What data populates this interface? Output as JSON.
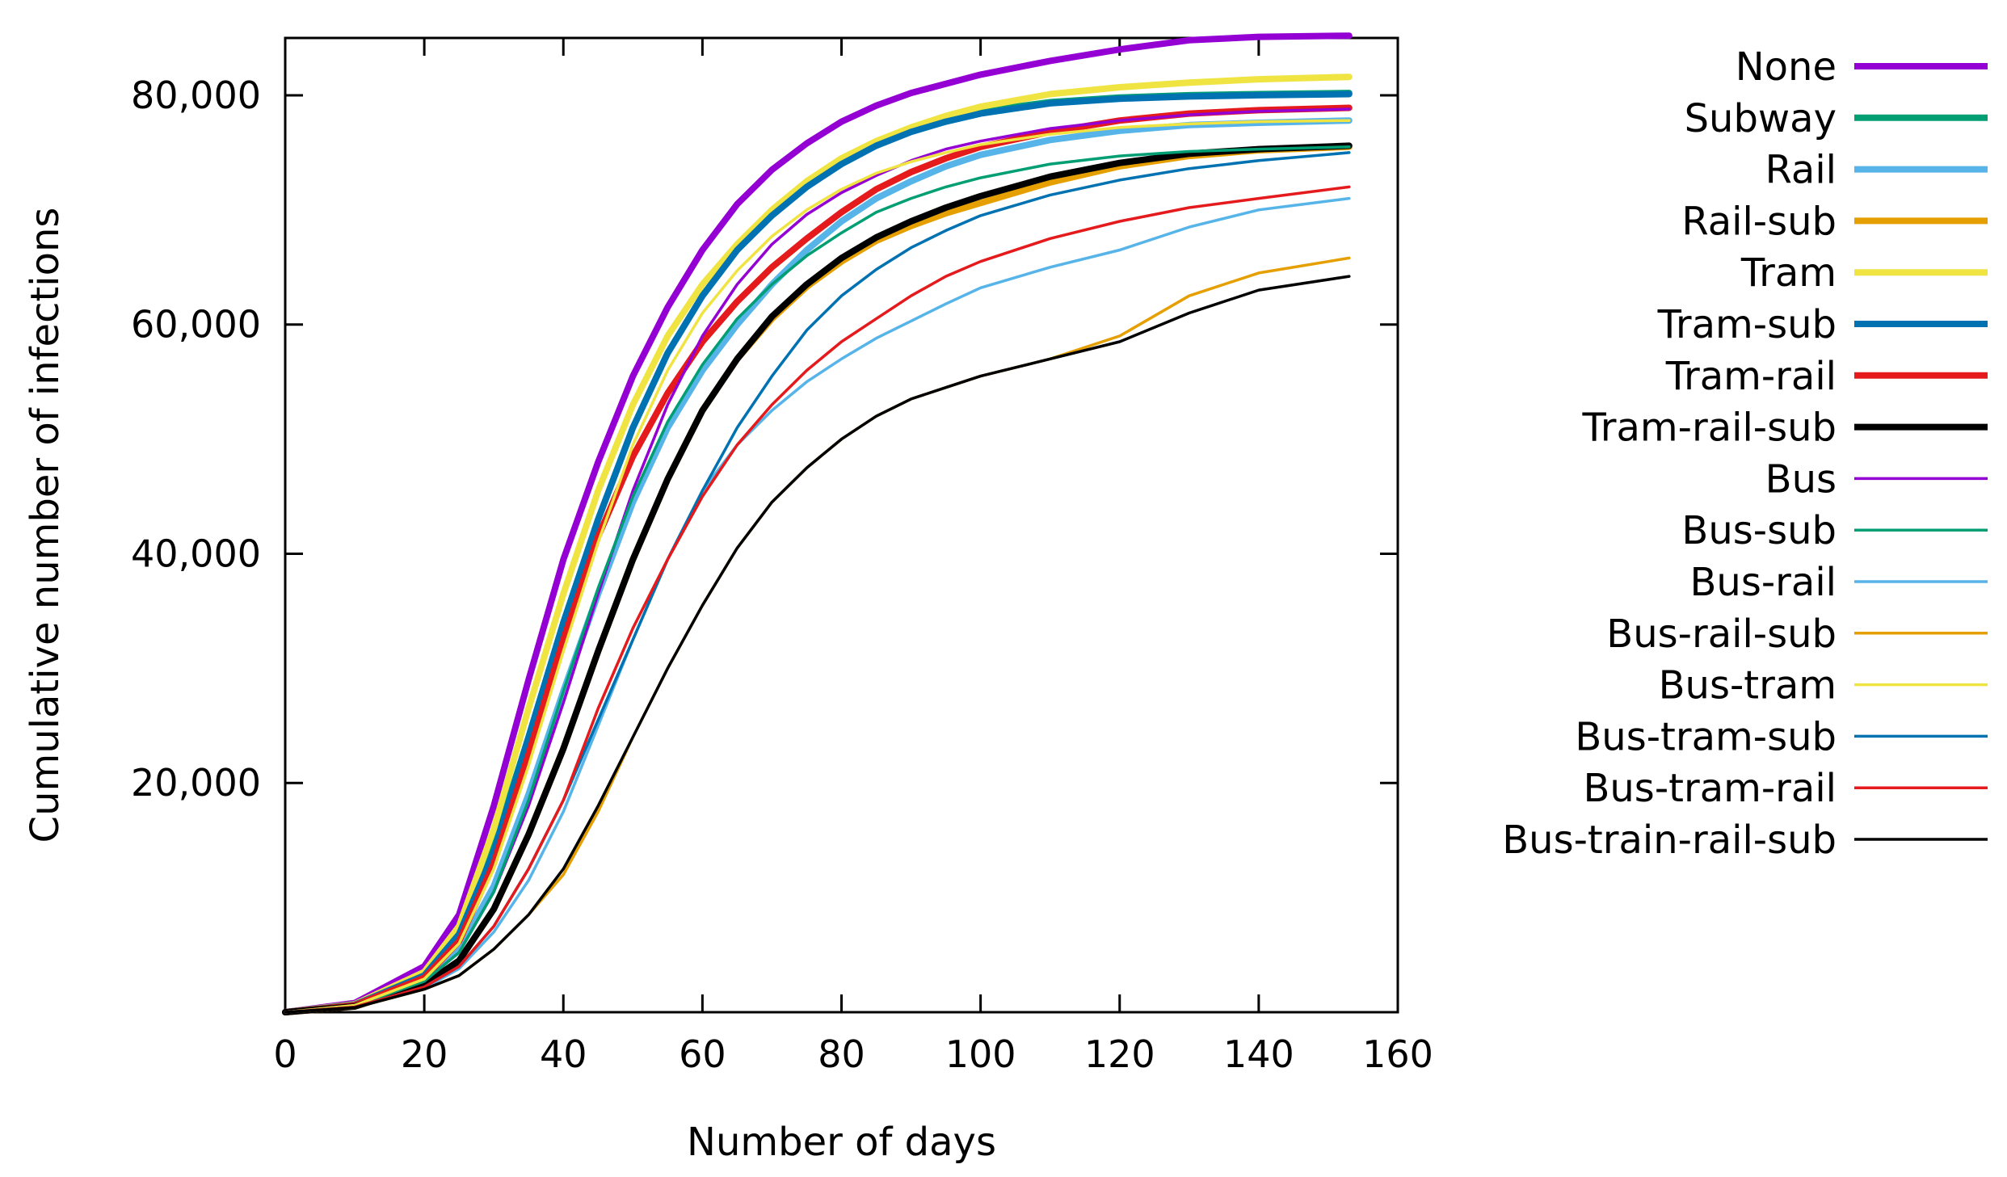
{
  "chart_data": {
    "type": "line",
    "title": "",
    "xlabel": "Number of days",
    "ylabel": "Cumulative number of infections",
    "xlim": [
      0,
      160
    ],
    "ylim": [
      0,
      85000
    ],
    "xticks": [
      0,
      20,
      40,
      60,
      80,
      100,
      120,
      140,
      160
    ],
    "xtick_labels": [
      "0",
      "20",
      "40",
      "60",
      "80",
      "100",
      "120",
      "140",
      "160"
    ],
    "yticks": [
      20000,
      40000,
      60000,
      80000
    ],
    "ytick_labels": [
      "20,000",
      "40,000",
      "60,000",
      "80,000"
    ],
    "grid": false,
    "legend_position": "outside-right",
    "x": [
      0,
      10,
      20,
      25,
      30,
      35,
      40,
      45,
      50,
      55,
      60,
      65,
      70,
      75,
      80,
      85,
      90,
      95,
      100,
      110,
      120,
      130,
      140,
      153
    ],
    "series": [
      {
        "name": "None",
        "color": "#9400D3",
        "width": "thick",
        "values": [
          0,
          800,
          4000,
          8500,
          18000,
          29000,
          39500,
          48000,
          55500,
          61500,
          66500,
          70500,
          73500,
          75800,
          77700,
          79100,
          80200,
          81000,
          81800,
          83000,
          84000,
          84800,
          85100,
          85200
        ]
      },
      {
        "name": "Subway",
        "color": "#009E73",
        "width": "thick",
        "values": [
          0,
          700,
          3200,
          6800,
          14500,
          24000,
          34000,
          43000,
          51000,
          57500,
          62500,
          66500,
          69800,
          72300,
          74300,
          75800,
          77000,
          78000,
          78600,
          79400,
          79800,
          80000,
          80100,
          80200
        ]
      },
      {
        "name": "Rail",
        "color": "#56B4E9",
        "width": "thick",
        "values": [
          0,
          600,
          2800,
          5500,
          11000,
          19000,
          28000,
          36500,
          44500,
          51000,
          56000,
          60000,
          63500,
          66500,
          69000,
          71000,
          72500,
          73800,
          74800,
          76100,
          76900,
          77400,
          77600,
          77800
        ]
      },
      {
        "name": "Rail-sub",
        "color": "#E69F00",
        "width": "thick",
        "values": [
          0,
          500,
          2400,
          4500,
          9000,
          15500,
          23000,
          31500,
          39500,
          46500,
          52500,
          57000,
          60500,
          63300,
          65500,
          67300,
          68600,
          69700,
          70600,
          72400,
          73800,
          74700,
          75200,
          75500
        ]
      },
      {
        "name": "Tram",
        "color": "#F0E442",
        "width": "thick",
        "values": [
          0,
          700,
          3500,
          7500,
          16000,
          26500,
          36500,
          45500,
          53000,
          59000,
          63500,
          67000,
          70000,
          72500,
          74500,
          76000,
          77200,
          78200,
          79000,
          80100,
          80700,
          81100,
          81400,
          81600
        ]
      },
      {
        "name": "Tram-sub",
        "color": "#0072B2",
        "width": "thick",
        "values": [
          0,
          650,
          3200,
          6800,
          14000,
          24000,
          34000,
          43000,
          51000,
          57500,
          62500,
          66500,
          69500,
          72000,
          74000,
          75600,
          76800,
          77700,
          78400,
          79300,
          79700,
          79900,
          80000,
          80100
        ]
      },
      {
        "name": "Tram-rail",
        "color": "#E41A1C",
        "width": "thick",
        "values": [
          0,
          600,
          3000,
          6200,
          13000,
          22500,
          32500,
          41500,
          48500,
          54000,
          58500,
          62000,
          65000,
          67500,
          69800,
          71800,
          73300,
          74500,
          75500,
          76800,
          77800,
          78400,
          78700,
          78900
        ]
      },
      {
        "name": "Tram-rail-sub",
        "color": "#000000",
        "width": "thick",
        "values": [
          0,
          500,
          2400,
          4500,
          9000,
          15500,
          23000,
          31500,
          39500,
          46500,
          52500,
          57000,
          60700,
          63500,
          65800,
          67600,
          69000,
          70200,
          71200,
          72900,
          74100,
          74900,
          75300,
          75600
        ]
      },
      {
        "name": "Bus",
        "color": "#9400D3",
        "width": "thin",
        "values": [
          0,
          550,
          2700,
          5200,
          10500,
          18000,
          27000,
          36500,
          45500,
          53000,
          59000,
          63500,
          67000,
          69600,
          71500,
          73000,
          74300,
          75300,
          76000,
          77100,
          77800,
          78300,
          78600,
          78800
        ]
      },
      {
        "name": "Bus-sub",
        "color": "#009E73",
        "width": "thin",
        "values": [
          0,
          550,
          2700,
          5200,
          10500,
          18500,
          28000,
          37000,
          45000,
          51500,
          56500,
          60500,
          63500,
          66000,
          68000,
          69800,
          71000,
          72000,
          72800,
          74000,
          74700,
          75100,
          75300,
          75500
        ]
      },
      {
        "name": "Bus-rail",
        "color": "#56B4E9",
        "width": "thin",
        "values": [
          0,
          450,
          2100,
          3800,
          7000,
          11500,
          17500,
          25000,
          32500,
          39500,
          45500,
          49500,
          52500,
          55000,
          57000,
          58800,
          60300,
          61800,
          63200,
          65000,
          66500,
          68500,
          70000,
          71000
        ]
      },
      {
        "name": "Bus-rail-sub",
        "color": "#E69F00",
        "width": "thin",
        "values": [
          0,
          400,
          2000,
          3200,
          5500,
          8500,
          12000,
          17500,
          24000,
          30000,
          35500,
          40500,
          44500,
          47500,
          50000,
          52000,
          53500,
          54500,
          55500,
          57000,
          59000,
          62500,
          64500,
          65800
        ]
      },
      {
        "name": "Bus-tram",
        "color": "#F0E442",
        "width": "thin",
        "values": [
          0,
          600,
          2900,
          6000,
          12500,
          21500,
          31500,
          41000,
          49500,
          56000,
          61000,
          64700,
          67700,
          70000,
          71800,
          73200,
          74200,
          75000,
          75700,
          76600,
          77200,
          77500,
          77700,
          77800
        ]
      },
      {
        "name": "Bus-tram-sub",
        "color": "#0072B2",
        "width": "thin",
        "values": [
          0,
          450,
          2200,
          4000,
          7500,
          12500,
          18500,
          25500,
          32500,
          39500,
          45500,
          51000,
          55500,
          59500,
          62500,
          64800,
          66700,
          68200,
          69500,
          71300,
          72600,
          73600,
          74300,
          75000
        ]
      },
      {
        "name": "Bus-tram-rail",
        "color": "#E41A1C",
        "width": "thin",
        "values": [
          0,
          450,
          2200,
          4000,
          7500,
          12500,
          18500,
          26500,
          33500,
          39500,
          45000,
          49500,
          53000,
          56000,
          58500,
          60500,
          62500,
          64200,
          65500,
          67500,
          69000,
          70200,
          71000,
          72000
        ]
      },
      {
        "name": "Bus-train-rail-sub",
        "color": "#000000",
        "width": "thin",
        "values": [
          0,
          400,
          2000,
          3200,
          5500,
          8500,
          12500,
          18000,
          24000,
          30000,
          35500,
          40500,
          44500,
          47500,
          50000,
          52000,
          53500,
          54500,
          55500,
          57000,
          58500,
          61000,
          63000,
          64200
        ]
      }
    ]
  }
}
